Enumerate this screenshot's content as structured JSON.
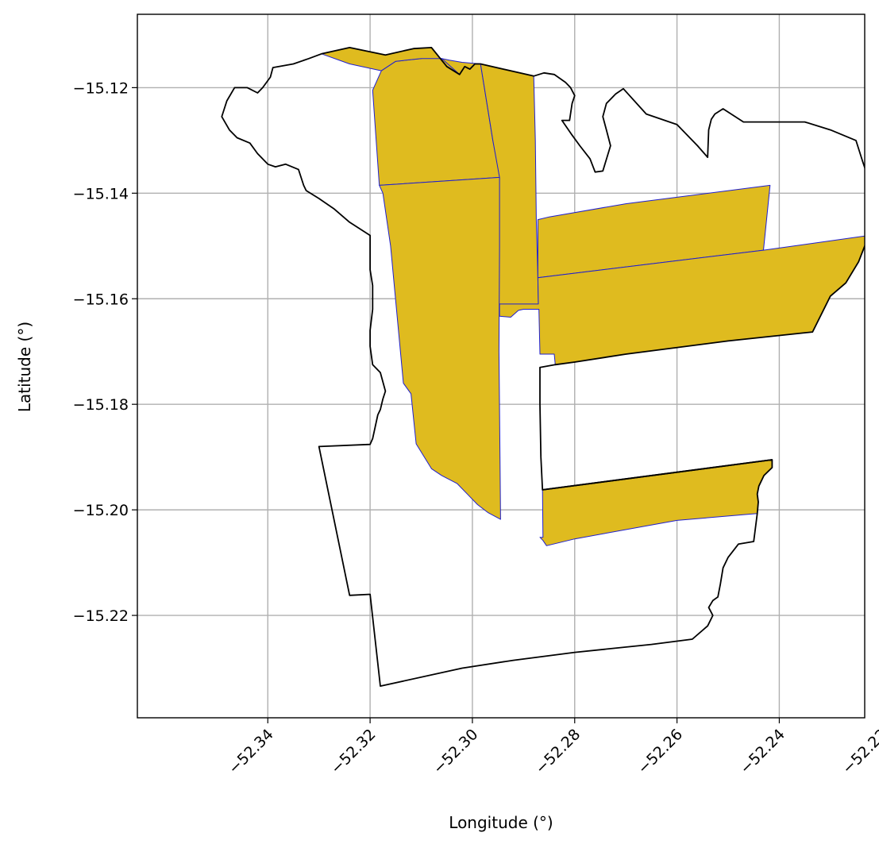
{
  "chart_data": {
    "type": "map",
    "title": "",
    "xlabel": "Longitude (°)",
    "ylabel": "Latitude (°)",
    "xlim": [
      -52.3655,
      -52.2233
    ],
    "ylim": [
      -15.2394,
      -15.1061
    ],
    "grid": true,
    "xticks": [
      -52.34,
      -52.32,
      -52.3,
      -52.28,
      -52.26,
      -52.24,
      -52.22
    ],
    "xtick_labels": [
      "−52.34",
      "−52.32",
      "−52.30",
      "−52.28",
      "−52.26",
      "−52.24",
      "−52.22"
    ],
    "yticks": [
      -15.12,
      -15.14,
      -15.16,
      -15.18,
      -15.2,
      -15.22
    ],
    "ytick_labels": [
      "−15.12",
      "−15.14",
      "−15.16",
      "−15.18",
      "−15.20",
      "−15.22"
    ],
    "colors": {
      "fill": "#DFBB1F",
      "fill_edge": "#1f1fd0",
      "outline": "#000000",
      "grid": "#b0b0b0"
    },
    "filled_regions": [
      {
        "name": "north-strip-west",
        "coordinates": [
          [
            -52.3182,
            -15.1385
          ],
          [
            -52.3195,
            -15.1205
          ],
          [
            -52.3178,
            -15.1168
          ],
          [
            -52.315,
            -15.115
          ],
          [
            -52.31,
            -15.1145
          ],
          [
            -52.308,
            -15.114
          ],
          [
            -52.306,
            -15.1145
          ],
          [
            -52.3045,
            -15.1148
          ],
          [
            -52.302,
            -15.1152
          ],
          [
            -52.2984,
            -15.1155
          ],
          [
            -52.297,
            -15.124
          ],
          [
            -52.296,
            -15.13
          ],
          [
            -52.295,
            -15.135
          ],
          [
            -52.2947,
            -15.137
          ]
        ]
      },
      {
        "name": "north-strip-east",
        "coordinates": [
          [
            -52.2984,
            -15.1155
          ],
          [
            -52.288,
            -15.1178
          ],
          [
            -52.2877,
            -15.13
          ],
          [
            -52.2875,
            -15.145
          ],
          [
            -52.2872,
            -15.156
          ],
          [
            -52.2871,
            -15.161
          ],
          [
            -52.295,
            -15.162
          ],
          [
            -52.295,
            -15.15
          ],
          [
            -52.2947,
            -15.137
          ],
          [
            -52.296,
            -15.13
          ],
          [
            -52.297,
            -15.124
          ]
        ]
      },
      {
        "name": "central-west-strip",
        "coordinates": [
          [
            -52.3182,
            -15.1385
          ],
          [
            -52.2947,
            -15.137
          ],
          [
            -52.2947,
            -15.15
          ],
          [
            -52.2948,
            -15.17
          ],
          [
            -52.2946,
            -15.19
          ],
          [
            -52.2945,
            -15.2018
          ],
          [
            -52.297,
            -15.2005
          ],
          [
            -52.299,
            -15.199
          ],
          [
            -52.301,
            -15.197
          ],
          [
            -52.303,
            -15.195
          ],
          [
            -52.306,
            -15.1935
          ],
          [
            -52.308,
            -15.1922
          ],
          [
            -52.311,
            -15.1875
          ],
          [
            -52.312,
            -15.178
          ],
          [
            -52.3135,
            -15.176
          ],
          [
            -52.316,
            -15.15
          ],
          [
            -52.3175,
            -15.14
          ]
        ]
      },
      {
        "name": "north-east-strip",
        "coordinates": [
          [
            -52.2872,
            -15.156
          ],
          [
            -52.2431,
            -15.1508
          ],
          [
            -52.2418,
            -15.1385
          ],
          [
            -52.27,
            -15.142
          ],
          [
            -52.285,
            -15.1445
          ],
          [
            -52.2872,
            -15.145
          ]
        ]
      },
      {
        "name": "central-east-strip",
        "coordinates": [
          [
            -52.2872,
            -15.156
          ],
          [
            -52.2431,
            -15.1508
          ],
          [
            -52.2225,
            -15.148
          ],
          [
            -52.2245,
            -15.153
          ],
          [
            -52.227,
            -15.157
          ],
          [
            -52.23,
            -15.1595
          ],
          [
            -52.2335,
            -15.1663
          ],
          [
            -52.25,
            -15.168
          ],
          [
            -52.27,
            -15.1705
          ],
          [
            -52.28,
            -15.172
          ],
          [
            -52.2838,
            -15.1725
          ],
          [
            -52.284,
            -15.1705
          ],
          [
            -52.2868,
            -15.1705
          ],
          [
            -52.287,
            -15.162
          ],
          [
            -52.29,
            -15.162
          ],
          [
            -52.291,
            -15.1622
          ],
          [
            -52.2925,
            -15.1635
          ],
          [
            -52.2947,
            -15.1633
          ],
          [
            -52.2947,
            -15.161
          ],
          [
            -52.2871,
            -15.161
          ]
        ]
      },
      {
        "name": "east-notch",
        "coordinates": [
          [
            -52.2225,
            -15.148
          ],
          [
            -52.2212,
            -15.1468
          ],
          [
            -52.22,
            -15.1485
          ],
          [
            -52.218,
            -15.152
          ],
          [
            -52.216,
            -15.156
          ],
          [
            -52.2145,
            -15.1575
          ],
          [
            -52.2165,
            -15.16
          ],
          [
            -52.219,
            -15.158
          ],
          [
            -52.2205,
            -15.154
          ]
        ]
      },
      {
        "name": "south-strip",
        "coordinates": [
          [
            -52.2863,
            -15.1962
          ],
          [
            -52.2414,
            -15.1905
          ],
          [
            -52.2414,
            -15.192
          ],
          [
            -52.243,
            -15.1935
          ],
          [
            -52.244,
            -15.1955
          ],
          [
            -52.2443,
            -15.197
          ],
          [
            -52.2441,
            -15.1985
          ],
          [
            -52.2443,
            -15.2007
          ],
          [
            -52.26,
            -15.202
          ],
          [
            -52.28,
            -15.2055
          ],
          [
            -52.2855,
            -15.2068
          ],
          [
            -52.2862,
            -15.2058
          ],
          [
            -52.2868,
            -15.2052
          ],
          [
            -52.2862,
            -15.2052
          ]
        ]
      },
      {
        "name": "north-cap",
        "coordinates": [
          [
            -52.3295,
            -15.1136
          ],
          [
            -52.324,
            -15.1124
          ],
          [
            -52.317,
            -15.1138
          ],
          [
            -52.3115,
            -15.1126
          ],
          [
            -52.308,
            -15.1124
          ],
          [
            -52.305,
            -15.116
          ],
          [
            -52.3025,
            -15.1175
          ],
          [
            -52.306,
            -15.1145
          ],
          [
            -52.31,
            -15.1145
          ],
          [
            -52.315,
            -15.115
          ],
          [
            -52.3178,
            -15.1168
          ],
          [
            -52.324,
            -15.1155
          ]
        ]
      }
    ],
    "outline_paths": [
      {
        "name": "outer-boundary",
        "coordinates": [
          [
            -52.288,
            -15.1178
          ],
          [
            -52.286,
            -15.1172
          ],
          [
            -52.284,
            -15.1175
          ],
          [
            -52.2818,
            -15.119
          ],
          [
            -52.2808,
            -15.12
          ],
          [
            -52.28,
            -15.1215
          ],
          [
            -52.2805,
            -15.123
          ],
          [
            -52.281,
            -15.1262
          ],
          [
            -52.2825,
            -15.1262
          ],
          [
            -52.2805,
            -15.129
          ],
          [
            -52.279,
            -15.131
          ],
          [
            -52.277,
            -15.1335
          ],
          [
            -52.276,
            -15.136
          ],
          [
            -52.2745,
            -15.1358
          ],
          [
            -52.273,
            -15.131
          ],
          [
            -52.2738,
            -15.128
          ],
          [
            -52.2745,
            -15.1255
          ],
          [
            -52.2738,
            -15.123
          ],
          [
            -52.272,
            -15.1212
          ],
          [
            -52.2705,
            -15.1202
          ],
          [
            -52.266,
            -15.125
          ],
          [
            -52.26,
            -15.127
          ],
          [
            -52.256,
            -15.131
          ],
          [
            -52.254,
            -15.1332
          ],
          [
            -52.2538,
            -15.128
          ],
          [
            -52.2533,
            -15.126
          ],
          [
            -52.2526,
            -15.125
          ],
          [
            -52.251,
            -15.124
          ],
          [
            -52.247,
            -15.1265
          ],
          [
            -52.242,
            -15.1265
          ],
          [
            -52.235,
            -15.1265
          ],
          [
            -52.23,
            -15.128
          ],
          [
            -52.225,
            -15.13
          ],
          [
            -52.2237,
            -15.134
          ],
          [
            -52.223,
            -15.136
          ],
          [
            -52.2212,
            -15.1395
          ],
          [
            -52.2205,
            -15.1415
          ],
          [
            -52.2212,
            -15.145
          ],
          [
            -52.2225,
            -15.148
          ],
          [
            -52.2245,
            -15.153
          ],
          [
            -52.227,
            -15.157
          ],
          [
            -52.23,
            -15.1595
          ],
          [
            -52.2335,
            -15.1663
          ],
          [
            -52.25,
            -15.168
          ],
          [
            -52.27,
            -15.1705
          ],
          [
            -52.28,
            -15.172
          ],
          [
            -52.2838,
            -15.1725
          ],
          [
            -52.2868,
            -15.173
          ],
          [
            -52.2868,
            -15.18
          ],
          [
            -52.2866,
            -15.19
          ],
          [
            -52.2863,
            -15.1962
          ],
          [
            -52.2414,
            -15.1905
          ],
          [
            -52.2414,
            -15.192
          ],
          [
            -52.243,
            -15.1935
          ],
          [
            -52.244,
            -15.1955
          ],
          [
            -52.2443,
            -15.197
          ],
          [
            -52.2441,
            -15.1985
          ],
          [
            -52.2443,
            -15.2007
          ],
          [
            -52.245,
            -15.206
          ],
          [
            -52.248,
            -15.2065
          ],
          [
            -52.25,
            -15.209
          ],
          [
            -52.251,
            -15.211
          ],
          [
            -52.2515,
            -15.214
          ],
          [
            -52.252,
            -15.2165
          ],
          [
            -52.253,
            -15.2172
          ],
          [
            -52.2538,
            -15.2185
          ],
          [
            -52.253,
            -15.22
          ],
          [
            -52.254,
            -15.222
          ],
          [
            -52.257,
            -15.2245
          ],
          [
            -52.265,
            -15.2255
          ],
          [
            -52.28,
            -15.227
          ],
          [
            -52.292,
            -15.2285
          ],
          [
            -52.302,
            -15.23
          ],
          [
            -52.318,
            -15.2334
          ],
          [
            -52.32,
            -15.216
          ],
          [
            -52.324,
            -15.2162
          ],
          [
            -52.33,
            -15.188
          ],
          [
            -52.32,
            -15.1876
          ],
          [
            -52.3195,
            -15.1865
          ],
          [
            -52.3185,
            -15.182
          ],
          [
            -52.318,
            -15.181
          ],
          [
            -52.3175,
            -15.179
          ],
          [
            -52.317,
            -15.1775
          ],
          [
            -52.318,
            -15.174
          ],
          [
            -52.3195,
            -15.1725
          ],
          [
            -52.32,
            -15.169
          ],
          [
            -52.32,
            -15.166
          ],
          [
            -52.3195,
            -15.162
          ],
          [
            -52.3195,
            -15.1575
          ],
          [
            -52.32,
            -15.1545
          ],
          [
            -52.32,
            -15.148
          ],
          [
            -52.324,
            -15.1455
          ],
          [
            -52.327,
            -15.143
          ],
          [
            -52.33,
            -15.141
          ],
          [
            -52.3325,
            -15.1395
          ],
          [
            -52.333,
            -15.1385
          ],
          [
            -52.334,
            -15.1355
          ],
          [
            -52.3365,
            -15.1345
          ],
          [
            -52.3385,
            -15.135
          ],
          [
            -52.34,
            -15.1345
          ],
          [
            -52.342,
            -15.1325
          ],
          [
            -52.3435,
            -15.1305
          ],
          [
            -52.346,
            -15.1295
          ],
          [
            -52.3475,
            -15.128
          ],
          [
            -52.349,
            -15.1255
          ],
          [
            -52.348,
            -15.1225
          ],
          [
            -52.3465,
            -15.12
          ],
          [
            -52.344,
            -15.12
          ],
          [
            -52.342,
            -15.121
          ],
          [
            -52.341,
            -15.12
          ],
          [
            -52.3395,
            -15.118
          ],
          [
            -52.339,
            -15.1162
          ],
          [
            -52.335,
            -15.1155
          ],
          [
            -52.332,
            -15.1145
          ],
          [
            -52.3295,
            -15.1136
          ],
          [
            -52.324,
            -15.1124
          ],
          [
            -52.317,
            -15.1138
          ],
          [
            -52.3115,
            -15.1126
          ],
          [
            -52.308,
            -15.1124
          ],
          [
            -52.305,
            -15.116
          ],
          [
            -52.3025,
            -15.1175
          ],
          [
            -52.3015,
            -15.116
          ],
          [
            -52.3005,
            -15.1165
          ],
          [
            -52.2995,
            -15.1155
          ],
          [
            -52.2984,
            -15.1155
          ],
          [
            -52.288,
            -15.1178
          ]
        ]
      },
      {
        "name": "south-strip-top-edge",
        "coordinates": [
          [
            -52.2863,
            -15.1962
          ],
          [
            -52.2414,
            -15.1905
          ]
        ]
      }
    ]
  }
}
